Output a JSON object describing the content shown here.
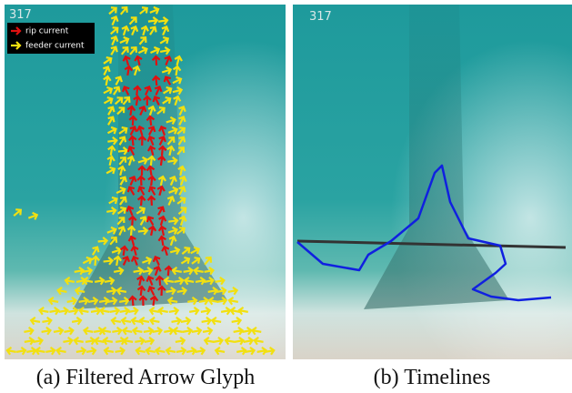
{
  "panels": [
    {
      "frame": "317",
      "legend": [
        "rip current",
        "feeder current"
      ],
      "caption": "(a) Filtered Arrow Glyph"
    },
    {
      "frame": "317",
      "caption": "(b) Timelines"
    }
  ]
}
